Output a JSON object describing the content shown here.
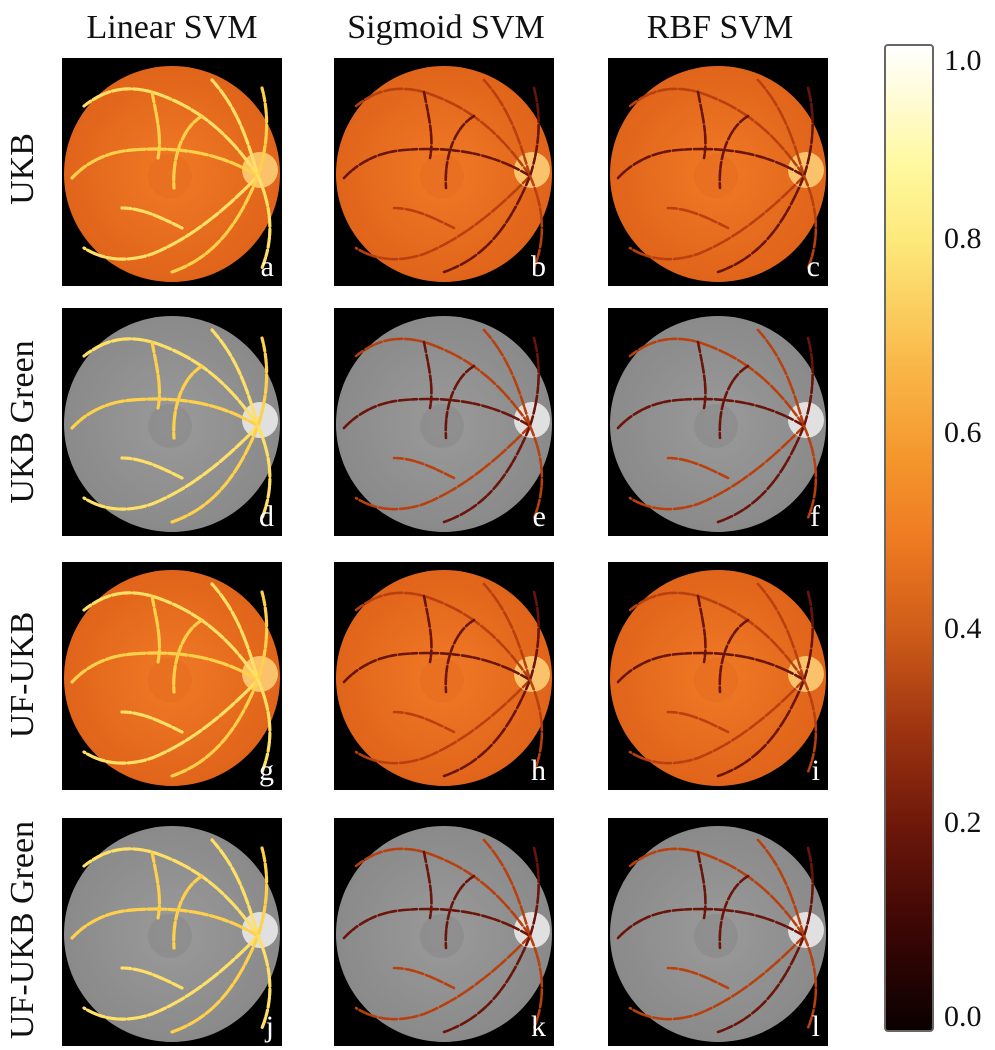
{
  "columns": [
    "Linear SVM",
    "Sigmoid SVM",
    "RBF SVM"
  ],
  "rows": [
    "UKB",
    "UKB Green",
    "UF-UKB",
    "UF-UKB Green"
  ],
  "panel_letters": [
    "a",
    "b",
    "c",
    "d",
    "e",
    "f",
    "g",
    "h",
    "i",
    "j",
    "k",
    "l"
  ],
  "colorbar": {
    "ticks": [
      "1.0",
      "0.8",
      "0.6",
      "0.4",
      "0.2",
      "0.0"
    ]
  },
  "colors": {
    "orange_fundus": "#f07a26",
    "gray_fundus": "#9a9a9a",
    "vessel_high": "#fff27a",
    "vessel_low": "#5a0a04"
  }
}
